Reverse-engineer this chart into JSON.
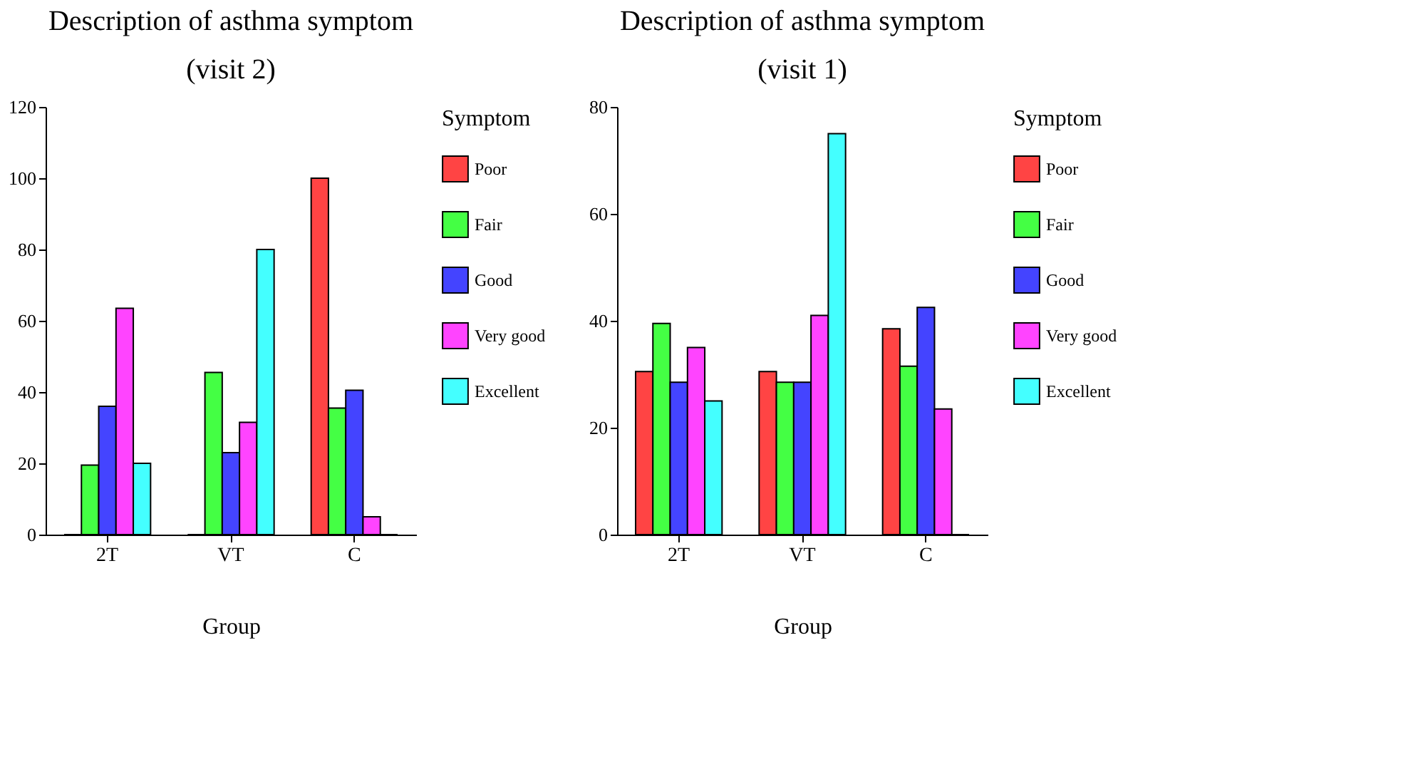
{
  "chart_data": [
    {
      "type": "bar",
      "title": "Description of asthma symptom",
      "subtitle": "(visit 2)",
      "xlabel": "Group",
      "legend_title": "Symptom",
      "legend": "right",
      "grid": false,
      "categories": [
        "2T",
        "VT",
        "C"
      ],
      "ylim": [
        0,
        120
      ],
      "yticks": [
        0,
        20,
        40,
        60,
        80,
        100,
        120
      ],
      "series": [
        {
          "name": "Poor",
          "color": "#ff4444",
          "values": [
            0,
            0,
            100
          ]
        },
        {
          "name": "Fair",
          "color": "#44ff44",
          "values": [
            19.5,
            45.5,
            35.5
          ]
        },
        {
          "name": "Good",
          "color": "#4444ff",
          "values": [
            36,
            23,
            40.5
          ]
        },
        {
          "name": "Very good",
          "color": "#ff44ff",
          "values": [
            63.5,
            31.5,
            5
          ]
        },
        {
          "name": "Excellent",
          "color": "#44ffff",
          "values": [
            20,
            80,
            0
          ]
        }
      ]
    },
    {
      "type": "bar",
      "title": "Description of asthma symptom",
      "subtitle": "(visit 1)",
      "xlabel": "Group",
      "legend_title": "Symptom",
      "legend": "right",
      "grid": false,
      "categories": [
        "2T",
        "VT",
        "C"
      ],
      "ylim": [
        0,
        80
      ],
      "yticks": [
        0,
        20,
        40,
        60,
        80
      ],
      "series": [
        {
          "name": "Poor",
          "color": "#ff4444",
          "values": [
            30.5,
            30.5,
            38.5
          ]
        },
        {
          "name": "Fair",
          "color": "#44ff44",
          "values": [
            39.5,
            28.5,
            31.5
          ]
        },
        {
          "name": "Good",
          "color": "#4444ff",
          "values": [
            28.5,
            28.5,
            42.5
          ]
        },
        {
          "name": "Very good",
          "color": "#ff44ff",
          "values": [
            35,
            41,
            23.5
          ]
        },
        {
          "name": "Excellent",
          "color": "#44ffff",
          "values": [
            25,
            75,
            0
          ]
        }
      ]
    }
  ]
}
